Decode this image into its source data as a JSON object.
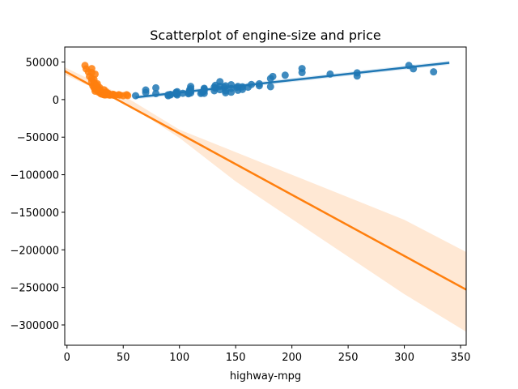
{
  "chart_data": {
    "type": "scatter",
    "title": "Scatterplot of engine-size and price",
    "xlabel": "highway-mpg",
    "ylabel": "",
    "xlim": [
      -2,
      355
    ],
    "ylim": [
      -327000,
      70000
    ],
    "xticks": [
      0,
      50,
      100,
      150,
      200,
      250,
      300,
      350
    ],
    "yticks": [
      50000,
      0,
      -50000,
      -100000,
      -150000,
      -200000,
      -250000,
      -300000
    ],
    "ytick_labels": [
      "50000",
      "0",
      "−50000",
      "−100000",
      "−150000",
      "−200000",
      "−250000",
      "−300000"
    ],
    "grid": false,
    "legend": "none",
    "series": [
      {
        "color": "#1f77b4",
        "points": [
          [
            61,
            5200
          ],
          [
            70,
            9500
          ],
          [
            70,
            12800
          ],
          [
            79,
            8000
          ],
          [
            79,
            15600
          ],
          [
            90,
            5100
          ],
          [
            90,
            6400
          ],
          [
            92,
            6900
          ],
          [
            92,
            6300
          ],
          [
            97,
            7400
          ],
          [
            97,
            8200
          ],
          [
            98,
            6200
          ],
          [
            98,
            7800
          ],
          [
            103,
            8400
          ],
          [
            108,
            7700
          ],
          [
            108,
            8900
          ],
          [
            109,
            10500
          ],
          [
            109,
            12900
          ],
          [
            110,
            8800
          ],
          [
            110,
            11200
          ],
          [
            110,
            14500
          ],
          [
            110,
            17500
          ],
          [
            119,
            8100
          ],
          [
            120,
            9300
          ],
          [
            121,
            10500
          ],
          [
            122,
            8300
          ],
          [
            122,
            11500
          ],
          [
            122,
            14000
          ],
          [
            122,
            15000
          ],
          [
            131,
            11800
          ],
          [
            131,
            16500
          ],
          [
            132,
            15200
          ],
          [
            136,
            13200
          ],
          [
            136,
            17700
          ],
          [
            136,
            23900
          ],
          [
            140,
            16400
          ],
          [
            141,
            9100
          ],
          [
            141,
            11700
          ],
          [
            141,
            18400
          ],
          [
            146,
            9800
          ],
          [
            146,
            14900
          ],
          [
            146,
            19800
          ],
          [
            151,
            16200
          ],
          [
            152,
            12400
          ],
          [
            156,
            13500
          ],
          [
            156,
            17000
          ],
          [
            161,
            16500
          ],
          [
            164,
            20100
          ],
          [
            171,
            18400
          ],
          [
            181,
            17200
          ],
          [
            181,
            28000
          ],
          [
            183,
            30800
          ],
          [
            194,
            32500
          ],
          [
            209,
            36000
          ],
          [
            209,
            41300
          ],
          [
            234,
            34000
          ],
          [
            258,
            31400
          ],
          [
            258,
            35600
          ],
          [
            304,
            45400
          ],
          [
            308,
            41000
          ],
          [
            326,
            36900
          ],
          [
            98,
            10500
          ],
          [
            97,
            9700
          ],
          [
            132,
            19000
          ],
          [
            152,
            17600
          ],
          [
            171,
            21000
          ]
        ],
        "fit_line": [
          [
            61,
            3000
          ],
          [
            340,
            49000
          ]
        ]
      },
      {
        "color": "#ff7f0e",
        "points": [
          [
            16,
            45400
          ],
          [
            17,
            40900
          ],
          [
            19,
            36900
          ],
          [
            20,
            30800
          ],
          [
            22,
            41300
          ],
          [
            22,
            36000
          ],
          [
            22,
            28100
          ],
          [
            22,
            24600
          ],
          [
            23,
            18400
          ],
          [
            24,
            15800
          ],
          [
            24,
            22500
          ],
          [
            25,
            17000
          ],
          [
            25,
            19000
          ],
          [
            25,
            13500
          ],
          [
            25,
            11200
          ],
          [
            25,
            33900
          ],
          [
            26,
            19700
          ],
          [
            26,
            17200
          ],
          [
            26,
            15700
          ],
          [
            27,
            16500
          ],
          [
            27,
            12900
          ],
          [
            28,
            9900
          ],
          [
            28,
            11600
          ],
          [
            28,
            14400
          ],
          [
            29,
            13400
          ],
          [
            29,
            10500
          ],
          [
            30,
            8900
          ],
          [
            30,
            7900
          ],
          [
            30,
            9300
          ],
          [
            30,
            11300
          ],
          [
            31,
            8500
          ],
          [
            31,
            7400
          ],
          [
            31,
            10200
          ],
          [
            32,
            8000
          ],
          [
            32,
            6900
          ],
          [
            32,
            9000
          ],
          [
            33,
            7600
          ],
          [
            33,
            6400
          ],
          [
            34,
            7800
          ],
          [
            34,
            9500
          ],
          [
            34,
            8400
          ],
          [
            34,
            6200
          ],
          [
            36,
            7100
          ],
          [
            36,
            6500
          ],
          [
            37,
            7300
          ],
          [
            37,
            8100
          ],
          [
            38,
            6700
          ],
          [
            38,
            5900
          ],
          [
            39,
            6400
          ],
          [
            41,
            7000
          ],
          [
            41,
            6000
          ],
          [
            42,
            6300
          ],
          [
            43,
            5600
          ],
          [
            46,
            6500
          ],
          [
            47,
            6000
          ],
          [
            50,
            5200
          ],
          [
            53,
            6500
          ],
          [
            54,
            5400
          ],
          [
            33,
            13000
          ],
          [
            35,
            10100
          ],
          [
            29,
            16000
          ],
          [
            27,
            21000
          ],
          [
            24,
            26900
          ]
        ],
        "fit_line": [
          [
            -2,
            38000
          ],
          [
            355,
            -253000
          ]
        ],
        "ci_band": [
          [
            -2,
            43000,
            33000
          ],
          [
            50,
            5500,
            -2500
          ],
          [
            100,
            -40000,
            -51000
          ],
          [
            150,
            -70000,
            -109000
          ],
          [
            200,
            -100000,
            -159000
          ],
          [
            250,
            -130000,
            -209000
          ],
          [
            300,
            -160000,
            -259000
          ],
          [
            355,
            -203000,
            -309000
          ]
        ]
      }
    ]
  }
}
